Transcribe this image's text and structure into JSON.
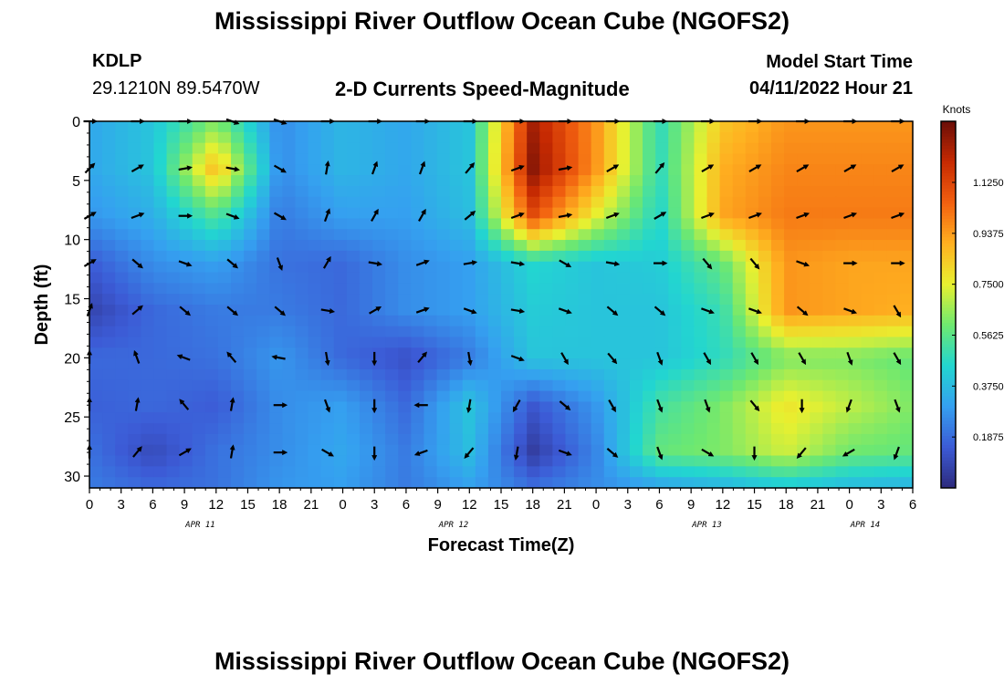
{
  "page": {
    "title": "Mississippi River Outflow Ocean Cube (NGOFS2)",
    "station_id": "KDLP",
    "station_coords": "29.1210N  89.5470W",
    "subtitle": "2-D Currents Speed-Magnitude",
    "model_start_label": "Model Start Time",
    "model_start_value": "04/11/2022 Hour 21",
    "bottom_title": "Mississippi River Outflow Ocean Cube (NGOFS2)"
  },
  "chart_data": {
    "type": "heatmap",
    "title": "2-D Currents Speed-Magnitude",
    "xlabel": "Forecast Time(Z)",
    "ylabel": "Depth (ft)",
    "ylim": [
      0,
      31
    ],
    "y_ticks": [
      0,
      5,
      10,
      15,
      20,
      25,
      30
    ],
    "x_range_hours": [
      0,
      78
    ],
    "x_tick_labels": [
      "0",
      "3",
      "6",
      "9",
      "12",
      "15",
      "18",
      "21",
      "0",
      "3",
      "6",
      "9",
      "12",
      "15",
      "18",
      "21",
      "0",
      "3",
      "6",
      "9",
      "12",
      "15",
      "18",
      "21",
      "0",
      "3",
      "6"
    ],
    "date_labels": [
      {
        "label": "APR 11",
        "at_hour": 10.5
      },
      {
        "label": "APR 12",
        "at_hour": 34.5
      },
      {
        "label": "APR 13",
        "at_hour": 58.5
      },
      {
        "label": "APR 14",
        "at_hour": 73.5
      }
    ],
    "colorbar": {
      "unit": "Knots",
      "range": [
        0.0,
        1.35
      ],
      "ticks": [
        "1.1250",
        "0.9375",
        "0.7500",
        "0.5625",
        "0.3750",
        "0.1875"
      ],
      "tick_values": [
        1.125,
        0.9375,
        0.75,
        0.5625,
        0.375,
        0.1875
      ],
      "colors": [
        "#2d2a7c",
        "#3c5bd6",
        "#35a0f0",
        "#22d6d0",
        "#6ee870",
        "#e8f030",
        "#ffb020",
        "#f26010",
        "#c62a02",
        "#6a0e08"
      ]
    },
    "speed_knots": {
      "x_hours": [
        0,
        6,
        12,
        18,
        24,
        30,
        36,
        42,
        48,
        54,
        60,
        66,
        72,
        78
      ],
      "depth_ft": [
        0,
        4,
        8,
        12,
        16,
        20,
        24,
        28,
        31
      ],
      "values": [
        [
          0.32,
          0.4,
          0.62,
          0.26,
          0.36,
          0.32,
          0.4,
          1.25,
          0.95,
          0.48,
          0.85,
          0.95,
          0.95,
          0.95
        ],
        [
          0.32,
          0.4,
          0.88,
          0.26,
          0.36,
          0.32,
          0.4,
          1.3,
          0.95,
          0.48,
          0.9,
          0.98,
          0.98,
          0.98
        ],
        [
          0.28,
          0.34,
          0.55,
          0.22,
          0.3,
          0.3,
          0.38,
          1.1,
          0.75,
          0.45,
          0.92,
          1.0,
          1.0,
          1.0
        ],
        [
          0.15,
          0.26,
          0.3,
          0.2,
          0.18,
          0.26,
          0.3,
          0.45,
          0.4,
          0.42,
          0.58,
          0.95,
          0.92,
          0.92
        ],
        [
          0.08,
          0.18,
          0.22,
          0.22,
          0.18,
          0.26,
          0.3,
          0.42,
          0.4,
          0.4,
          0.5,
          0.95,
          0.92,
          0.9
        ],
        [
          0.18,
          0.18,
          0.2,
          0.28,
          0.18,
          0.12,
          0.22,
          0.4,
          0.4,
          0.4,
          0.48,
          0.62,
          0.62,
          0.58
        ],
        [
          0.16,
          0.18,
          0.15,
          0.26,
          0.3,
          0.18,
          0.4,
          0.14,
          0.28,
          0.52,
          0.62,
          0.78,
          0.7,
          0.62
        ],
        [
          0.2,
          0.1,
          0.2,
          0.26,
          0.32,
          0.22,
          0.38,
          0.06,
          0.24,
          0.58,
          0.62,
          0.72,
          0.6,
          0.58
        ],
        [
          0.22,
          0.18,
          0.2,
          0.28,
          0.3,
          0.22,
          0.3,
          0.2,
          0.26,
          0.3,
          0.34,
          0.4,
          0.36,
          0.34
        ]
      ]
    },
    "current_arrows": [
      {
        "x_hours": [
          0,
          4.5,
          9,
          13.5,
          18,
          22.5,
          27,
          31.5,
          36,
          40.5,
          45,
          49.5,
          54,
          58.5,
          63,
          67.5,
          72,
          76.5
        ],
        "depth_ft": 0,
        "dir_deg": [
          90,
          90,
          90,
          110,
          110,
          90,
          90,
          90,
          90,
          90,
          90,
          90,
          90,
          90,
          90,
          90,
          90,
          90
        ]
      },
      {
        "x_hours": [
          0,
          4.5,
          9,
          13.5,
          18,
          22.5,
          27,
          31.5,
          36,
          40.5,
          45,
          49.5,
          54,
          58.5,
          63,
          67.5,
          72,
          76.5
        ],
        "depth_ft": 4,
        "dir_deg": [
          45,
          60,
          80,
          100,
          120,
          10,
          20,
          20,
          40,
          70,
          80,
          60,
          40,
          60,
          60,
          60,
          60,
          60
        ]
      },
      {
        "x_hours": [
          0,
          4.5,
          9,
          13.5,
          18,
          22.5,
          27,
          31.5,
          36,
          40.5,
          45,
          49.5,
          54,
          58.5,
          63,
          67.5,
          72,
          76.5
        ],
        "depth_ft": 8,
        "dir_deg": [
          60,
          70,
          90,
          110,
          120,
          20,
          30,
          30,
          50,
          70,
          80,
          70,
          60,
          70,
          70,
          70,
          70,
          70
        ]
      },
      {
        "x_hours": [
          0,
          4.5,
          9,
          13.5,
          18,
          22.5,
          27,
          31.5,
          36,
          40.5,
          45,
          49.5,
          54,
          58.5,
          63,
          67.5,
          72,
          76.5
        ],
        "depth_ft": 12,
        "dir_deg": [
          60,
          130,
          110,
          130,
          160,
          30,
          100,
          70,
          80,
          100,
          120,
          100,
          90,
          140,
          140,
          110,
          90,
          90
        ]
      },
      {
        "x_hours": [
          0,
          4.5,
          9,
          13.5,
          18,
          22.5,
          27,
          31.5,
          36,
          40.5,
          45,
          49.5,
          54,
          58.5,
          63,
          67.5,
          72,
          76.5
        ],
        "depth_ft": 16,
        "dir_deg": [
          20,
          50,
          130,
          130,
          130,
          100,
          60,
          70,
          110,
          100,
          110,
          130,
          130,
          110,
          110,
          130,
          110,
          150
        ]
      },
      {
        "x_hours": [
          0,
          4.5,
          9,
          13.5,
          18,
          22.5,
          27,
          31.5,
          36,
          40.5,
          45,
          49.5,
          54,
          58.5,
          63,
          67.5,
          72,
          76.5
        ],
        "depth_ft": 20,
        "dir_deg": [
          0,
          340,
          290,
          320,
          280,
          170,
          180,
          40,
          170,
          110,
          150,
          140,
          160,
          150,
          150,
          150,
          160,
          150
        ]
      },
      {
        "x_hours": [
          0,
          4.5,
          9,
          13.5,
          18,
          22.5,
          27,
          31.5,
          36,
          40.5,
          45,
          49.5,
          54,
          58.5,
          63,
          67.5,
          72,
          76.5
        ],
        "depth_ft": 24,
        "dir_deg": [
          0,
          10,
          320,
          10,
          90,
          160,
          180,
          270,
          190,
          210,
          130,
          150,
          160,
          160,
          140,
          180,
          200,
          160
        ]
      },
      {
        "x_hours": [
          0,
          4.5,
          9,
          13.5,
          18,
          22.5,
          27,
          31.5,
          36,
          40.5,
          45,
          49.5,
          54,
          58.5,
          63,
          67.5,
          72,
          76.5
        ],
        "depth_ft": 28,
        "dir_deg": [
          0,
          40,
          60,
          10,
          90,
          120,
          180,
          250,
          220,
          190,
          110,
          130,
          160,
          120,
          180,
          220,
          240,
          200
        ]
      }
    ]
  }
}
